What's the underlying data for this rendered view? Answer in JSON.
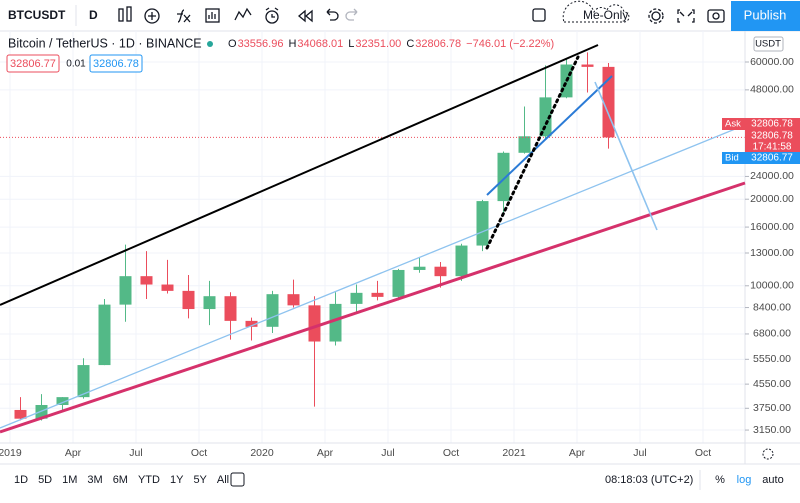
{
  "toolbar": {
    "symbol": "BTCUSDT",
    "interval": "D",
    "layout": "Me-Only",
    "publish": "Publish"
  },
  "legend": {
    "title": "Bitcoin / TetherUS · 1D · BINANCE",
    "ohlc": [
      {
        "label": "O",
        "value": "33556.96"
      },
      {
        "label": "H",
        "value": "34068.01"
      },
      {
        "label": "L",
        "value": "32351.00"
      },
      {
        "label": "C",
        "value": "32806.78"
      }
    ],
    "change": "−746.01 (−2.22%)",
    "sell": "32806.77",
    "spread": "0.01",
    "buy": "32806.78"
  },
  "price_scale": {
    "currency": "USDT",
    "ask_label": "Ask",
    "ask": "32806.78",
    "last": "32806.78",
    "countdown": "17:41:58",
    "bid_label": "Bid",
    "bid": "32806.77"
  },
  "bottom_bar": {
    "ranges": [
      "1D",
      "5D",
      "1M",
      "3M",
      "6M",
      "YTD",
      "1Y",
      "5Y",
      "All"
    ],
    "clock": "08:18:03 (UTC+2)",
    "percent": "%",
    "log": "log",
    "auto": "auto"
  },
  "chart_data": {
    "type": "candlestick",
    "log_scale": true,
    "up_color": "#53b987",
    "down_color": "#eb4d5c",
    "x": [
      "2019-01",
      "2019-02",
      "2019-03",
      "2019-04",
      "2019-05",
      "2019-06",
      "2019-07",
      "2019-08",
      "2019-09",
      "2019-10",
      "2019-11",
      "2019-12",
      "2020-01",
      "2020-02",
      "2020-03",
      "2020-04",
      "2020-05",
      "2020-06",
      "2020-07",
      "2020-08",
      "2020-09",
      "2020-10",
      "2020-11",
      "2020-12",
      "2021-01",
      "2021-02",
      "2021-03",
      "2021-04",
      "2021-05"
    ],
    "open": [
      3700,
      3450,
      3850,
      4100,
      5300,
      8600,
      10800,
      10100,
      9600,
      8300,
      9200,
      7550,
      7200,
      9350,
      8550,
      6400,
      8650,
      9450,
      9150,
      11350,
      11650,
      10800,
      13800,
      19700,
      29000,
      33100,
      45200,
      58800,
      57700
    ],
    "high": [
      4100,
      4200,
      4100,
      5600,
      9000,
      13900,
      13200,
      12300,
      10900,
      10400,
      9500,
      7750,
      9600,
      10500,
      9200,
      9500,
      10100,
      10400,
      11450,
      12500,
      12100,
      14000,
      19900,
      29300,
      42000,
      58400,
      61800,
      64800,
      59500
    ],
    "low": [
      3400,
      3400,
      3700,
      4050,
      5300,
      7500,
      9000,
      9400,
      7700,
      7300,
      6500,
      6450,
      6850,
      8400,
      3800,
      6200,
      8100,
      8900,
      8900,
      11100,
      9850,
      10400,
      13200,
      17600,
      28800,
      32300,
      44900,
      47000,
      30000
    ],
    "close": [
      3450,
      3850,
      4100,
      5300,
      8600,
      10800,
      10100,
      9600,
      8300,
      9200,
      7550,
      7200,
      9350,
      8550,
      6400,
      8650,
      9450,
      9150,
      11350,
      11650,
      10800,
      13800,
      19700,
      29000,
      33100,
      45200,
      58800,
      57700,
      32806.78
    ],
    "ylim": [
      2840,
      76900
    ],
    "yticks": [
      {
        "value": 3150,
        "label": "3150.00"
      },
      {
        "value": 3750,
        "label": "3750.00"
      },
      {
        "value": 4550,
        "label": "4550.00"
      },
      {
        "value": 5550,
        "label": "5550.00"
      },
      {
        "value": 6800,
        "label": "6800.00"
      },
      {
        "value": 8400,
        "label": "8400.00"
      },
      {
        "value": 10000,
        "label": "10000.00"
      },
      {
        "value": 13000,
        "label": "13000.00"
      },
      {
        "value": 16000,
        "label": "16000.00"
      },
      {
        "value": 20000,
        "label": "20000.00"
      },
      {
        "value": 24000,
        "label": "24000.00"
      },
      {
        "value": 48000,
        "label": "48000.00"
      },
      {
        "value": 60000,
        "label": "60000.00"
      }
    ],
    "xticks": [
      {
        "value": "2019-01",
        "label": "2019"
      },
      {
        "value": "2019-04",
        "label": "Apr"
      },
      {
        "value": "2019-07",
        "label": "Jul"
      },
      {
        "value": "2019-10",
        "label": "Oct"
      },
      {
        "value": "2020-01",
        "label": "2020"
      },
      {
        "value": "2020-04",
        "label": "Apr"
      },
      {
        "value": "2020-07",
        "label": "Jul"
      },
      {
        "value": "2020-10",
        "label": "Oct"
      },
      {
        "value": "2021-01",
        "label": "2021"
      },
      {
        "value": "2021-04",
        "label": "Apr"
      },
      {
        "value": "2021-07",
        "label": "Jul"
      },
      {
        "value": "2021-10",
        "label": "Oct"
      }
    ]
  }
}
